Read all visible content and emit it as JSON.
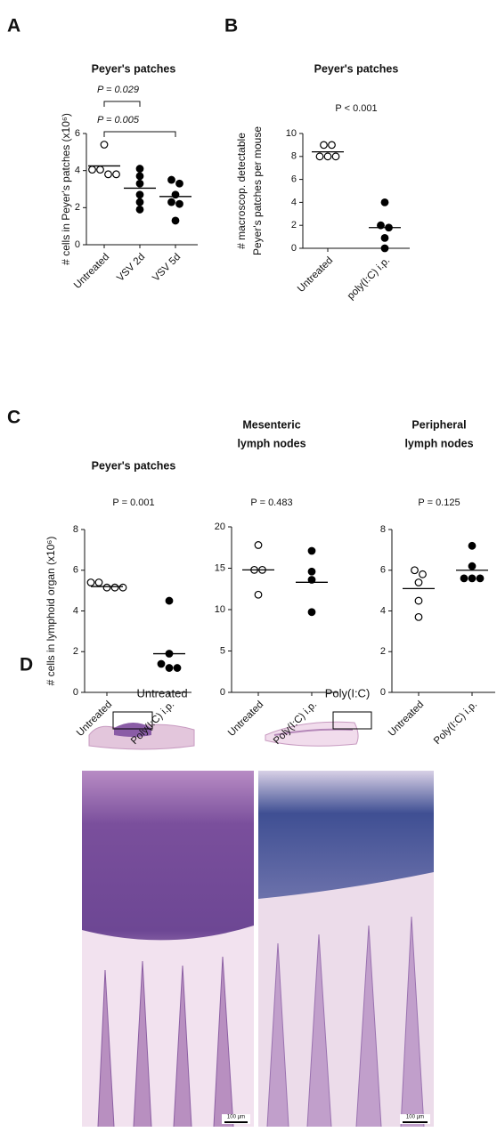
{
  "panel_labels": [
    "A",
    "B",
    "C",
    "D"
  ],
  "chart_data": [
    {
      "type": "dot",
      "title": [
        "Peyer's patches"
      ],
      "ylabel": [
        "# cells in Peyer's patches (x10⁶)"
      ],
      "annotations": [
        "P = 0.029",
        "P = 0.005"
      ],
      "categories": [
        "Untreated",
        "VSV 2d",
        "VSV 5d"
      ],
      "filled": [
        false,
        true,
        true
      ],
      "points": [
        [
          5.4,
          4.05,
          4.05,
          3.8,
          3.8
        ],
        [
          4.1,
          3.7,
          3.3,
          2.7,
          2.3,
          1.9
        ],
        [
          3.5,
          3.3,
          2.7,
          2.3,
          2.2,
          1.3
        ]
      ],
      "means": [
        4.25,
        3.05,
        2.6
      ],
      "color": "#000000",
      "ylim": [
        0,
        6
      ],
      "yticks": [
        0,
        2,
        4,
        6
      ]
    },
    {
      "type": "dot",
      "title": [
        "Peyer's patches"
      ],
      "ylabel": [
        "# macroscop. detectable",
        "Peyer's patches per mouse"
      ],
      "annotations": [
        "P < 0.001"
      ],
      "categories": [
        "Untreated",
        "poly(I:C) i.p."
      ],
      "filled": [
        false,
        true
      ],
      "points": [
        [
          9,
          9,
          8,
          8,
          8
        ],
        [
          4,
          2,
          1.8,
          0.9,
          0
        ]
      ],
      "means": [
        8.4,
        1.8
      ],
      "color": "#000000",
      "ylim": [
        0,
        10
      ],
      "yticks": [
        0,
        2,
        4,
        6,
        8,
        10
      ]
    },
    {
      "type": "dot",
      "title": [
        "Peyer's patches"
      ],
      "ylabel": [
        "# cells in lymphoid organ (x10⁶)"
      ],
      "annotations": [
        "P = 0.001"
      ],
      "categories": [
        "Untreated",
        "Poly(I:C) i.p."
      ],
      "filled": [
        false,
        true
      ],
      "points": [
        [
          5.4,
          5.4,
          5.15,
          5.15,
          5.15
        ],
        [
          4.5,
          1.9,
          1.4,
          1.2,
          1.2
        ]
      ],
      "means": [
        5.2,
        1.9
      ],
      "color": "#000000",
      "ylim": [
        0,
        8
      ],
      "yticks": [
        0,
        2,
        4,
        6,
        8
      ]
    },
    {
      "type": "dot",
      "title": [
        "Mesenteric",
        "lymph nodes"
      ],
      "annotations": [
        "P = 0.483"
      ],
      "categories": [
        "Untreated",
        "Poly(I:C) i.p."
      ],
      "filled": [
        false,
        true
      ],
      "points": [
        [
          17.8,
          14.8,
          14.8,
          11.8
        ],
        [
          17.1,
          14.6,
          13.6,
          9.7
        ]
      ],
      "means": [
        14.8,
        13.3
      ],
      "color": "#000000",
      "ylim": [
        0,
        20
      ],
      "yticks": [
        0,
        5,
        10,
        15,
        20
      ]
    },
    {
      "type": "dot",
      "title": [
        "Peripheral",
        "lymph nodes"
      ],
      "annotations": [
        "P = 0.125"
      ],
      "categories": [
        "Untreated",
        "Poly(I:C) i.p."
      ],
      "filled": [
        false,
        true
      ],
      "points": [
        [
          6,
          5.8,
          5.4,
          4.5,
          3.7
        ],
        [
          7.2,
          6.2,
          5.6,
          5.6,
          5.6
        ]
      ],
      "means": [
        5.1,
        6.0
      ],
      "color": "#000000",
      "ylim": [
        0,
        8
      ],
      "yticks": [
        0,
        2,
        4,
        6,
        8
      ]
    }
  ],
  "histology": {
    "labels": [
      "Untreated",
      "Poly(I:C)"
    ],
    "scale_bar": "100 µm"
  }
}
